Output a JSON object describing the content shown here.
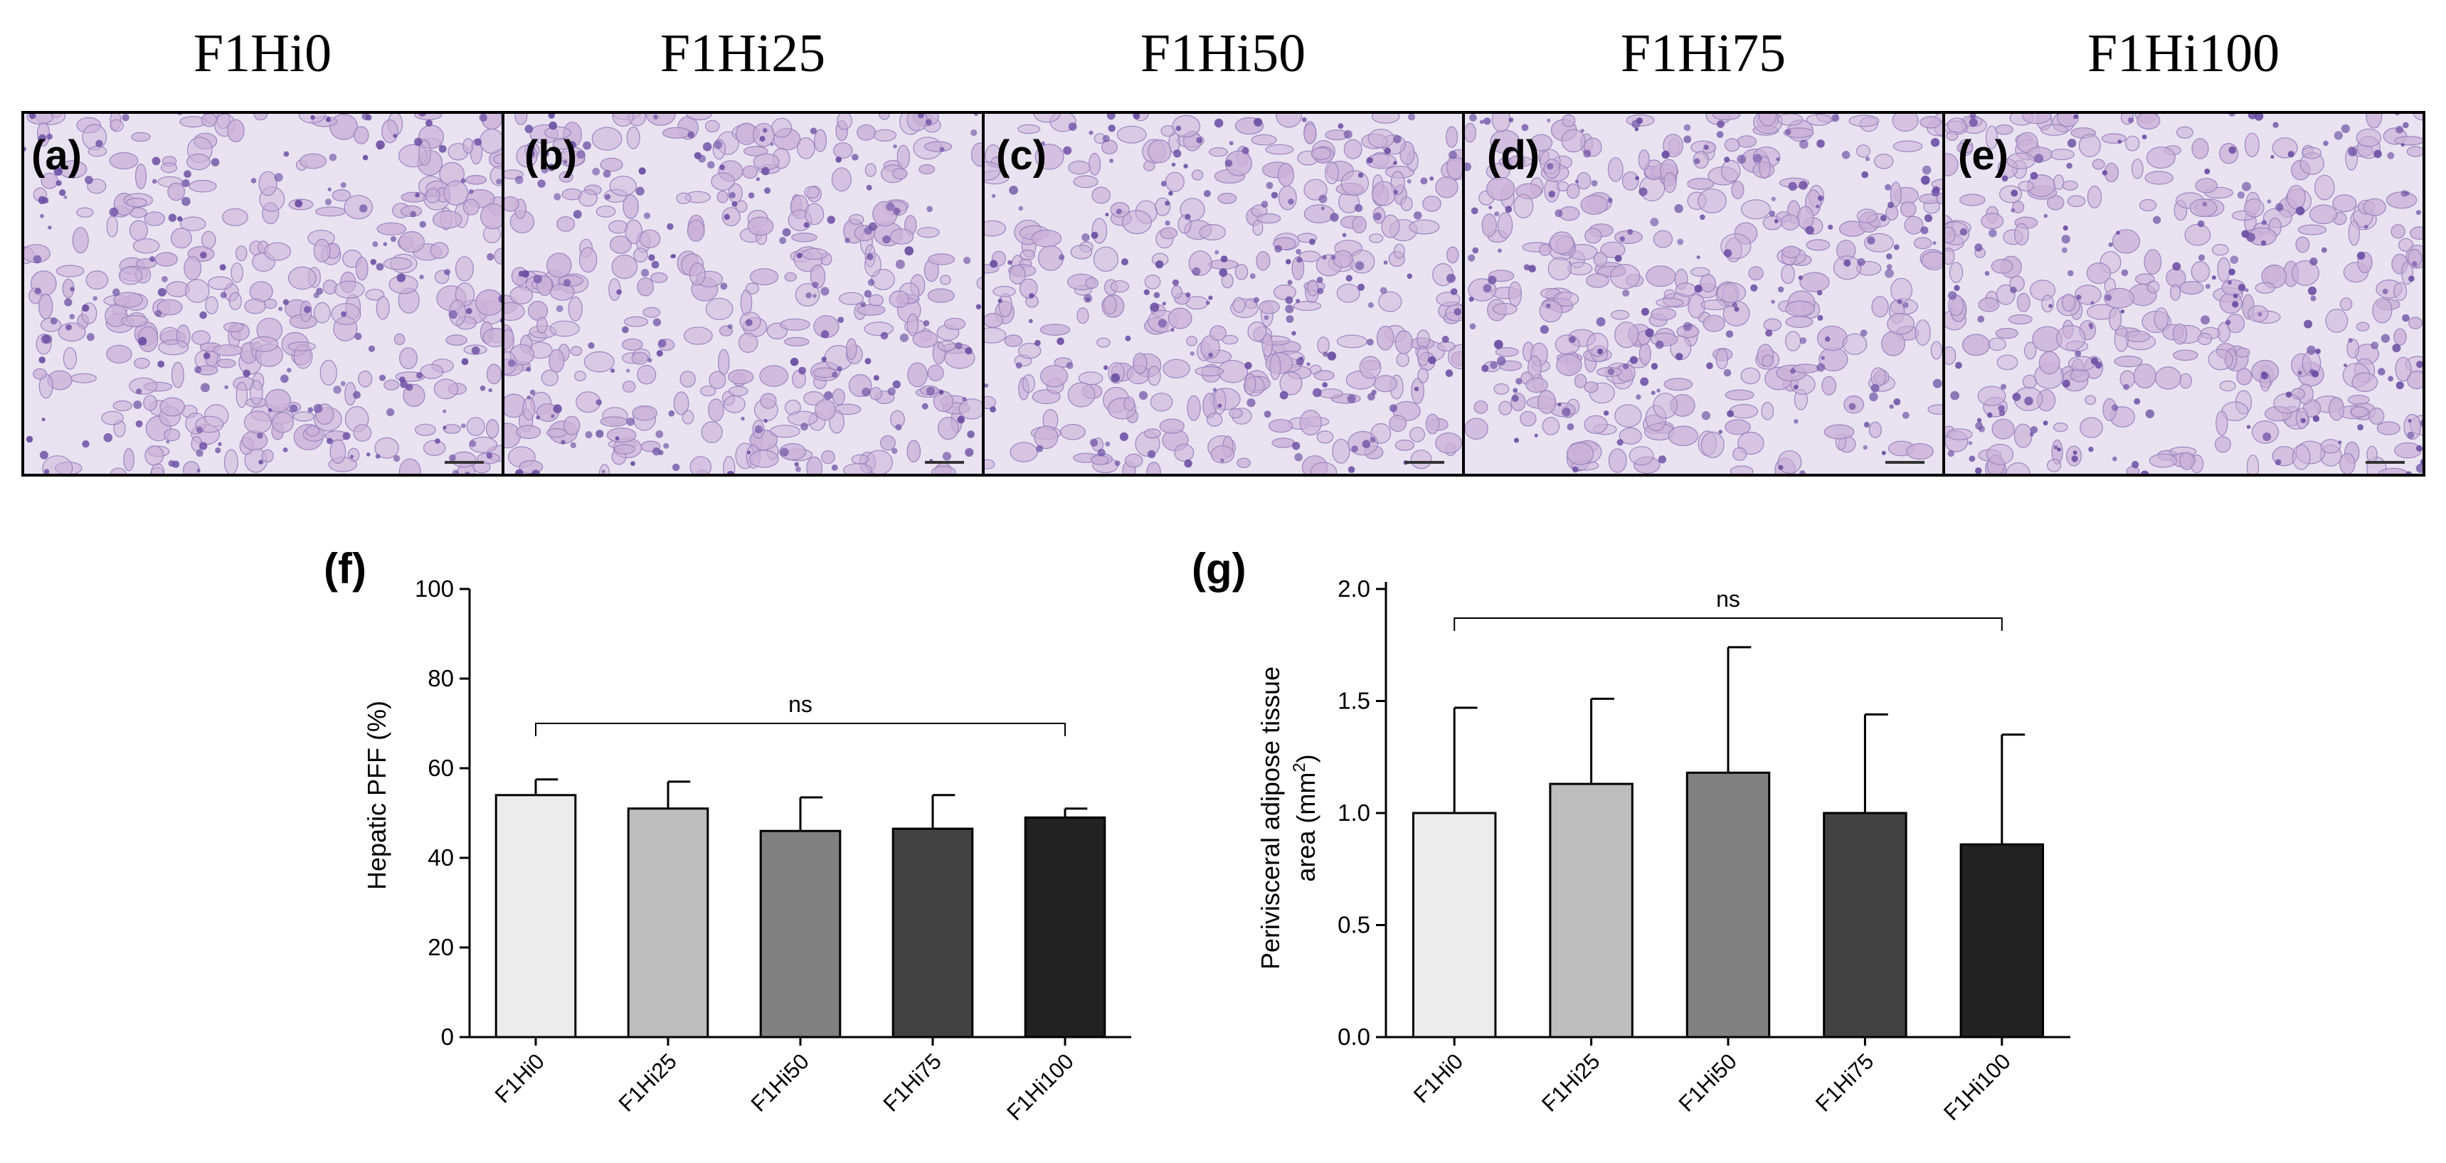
{
  "micrographs": {
    "titles": [
      "F1Hi0",
      "F1Hi25",
      "F1Hi50",
      "F1Hi75",
      "F1Hi100"
    ],
    "letters": [
      "(a)",
      "(b)",
      "(c)",
      "(d)",
      "(e)"
    ],
    "tissue_colors": {
      "background": "#e9e3f1",
      "cell": "#cbb1d8",
      "nucleus": "#6b4fa3",
      "membrane": "#9a86c0"
    }
  },
  "chart_data": [
    {
      "type": "bar",
      "panel_letter": "(f)",
      "categories": [
        "F1Hi0",
        "F1Hi25",
        "F1Hi50",
        "F1Hi75",
        "F1Hi100"
      ],
      "values": [
        54,
        51,
        46,
        46.5,
        49
      ],
      "errors": [
        3.5,
        6,
        7.5,
        7.5,
        2
      ],
      "bar_colors": [
        "#ececec",
        "#bdbdbd",
        "#808080",
        "#424242",
        "#222222"
      ],
      "title": "",
      "xlabel": "",
      "ylabel": "Hepatic PFF (%)",
      "ylim": [
        0,
        100
      ],
      "yticks": [
        "0",
        "20",
        "40",
        "60",
        "80",
        "100"
      ],
      "significance": {
        "label": "ns",
        "from": "F1Hi0",
        "to": "F1Hi100",
        "y": 70
      }
    },
    {
      "type": "bar",
      "panel_letter": "(g)",
      "categories": [
        "F1Hi0",
        "F1Hi25",
        "F1Hi50",
        "F1Hi75",
        "F1Hi100"
      ],
      "values": [
        1.0,
        1.13,
        1.18,
        1.0,
        0.86
      ],
      "errors": [
        0.47,
        0.38,
        0.56,
        0.44,
        0.49
      ],
      "bar_colors": [
        "#ececec",
        "#bdbdbd",
        "#808080",
        "#424242",
        "#222222"
      ],
      "title": "",
      "xlabel": "",
      "ylabel_line1": "Perivisceral adipose tissue",
      "ylabel_line2": "area (mm",
      "ylabel_sup": "2",
      "ylabel_close": ")",
      "ylim": [
        0,
        2.0
      ],
      "yticks": [
        "0.0",
        "0.5",
        "1.0",
        "1.5",
        "2.0"
      ],
      "significance": {
        "label": "ns",
        "from": "F1Hi0",
        "to": "F1Hi100",
        "y": 1.87
      }
    }
  ]
}
